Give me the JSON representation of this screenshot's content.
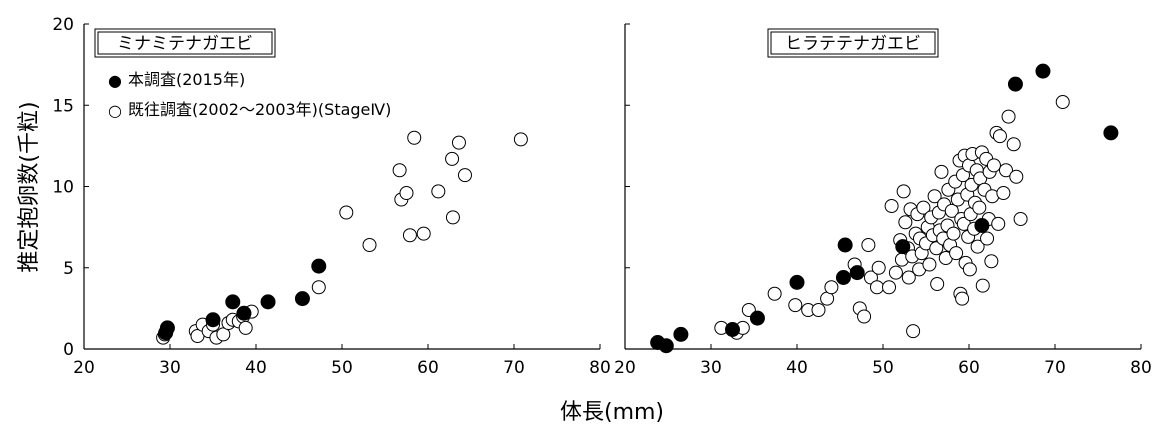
{
  "chart_data": [
    {
      "type": "scatter",
      "title": "ミナミテナガエビ",
      "xlim": [
        20,
        80
      ],
      "ylim": [
        0,
        20
      ],
      "xticks": [
        "20",
        "30",
        "40",
        "50",
        "60",
        "70",
        "80"
      ],
      "yticks": [
        "0",
        "5",
        "10",
        "15",
        "20"
      ],
      "series": [
        {
          "name": "本調査(2015年)",
          "marker": "filled-circle",
          "color": "#000000",
          "points": [
            [
              29.5,
              1.0
            ],
            [
              29.7,
              1.3
            ],
            [
              35.0,
              1.8
            ],
            [
              37.3,
              2.9
            ],
            [
              38.6,
              2.2
            ],
            [
              41.4,
              2.9
            ],
            [
              45.4,
              3.1
            ],
            [
              47.3,
              5.1
            ]
          ]
        },
        {
          "name": "既往調査(2002～2003年)(StageⅣ)",
          "marker": "open-circle",
          "color": "#ffffff",
          "points": [
            [
              29.2,
              0.7
            ],
            [
              29.4,
              0.9
            ],
            [
              33.0,
              1.1
            ],
            [
              33.2,
              0.8
            ],
            [
              33.8,
              1.5
            ],
            [
              34.5,
              1.1
            ],
            [
              35.0,
              1.5
            ],
            [
              35.4,
              0.7
            ],
            [
              36.2,
              0.9
            ],
            [
              36.8,
              1.6
            ],
            [
              37.3,
              1.8
            ],
            [
              38.0,
              1.7
            ],
            [
              38.5,
              2.0
            ],
            [
              38.8,
              1.3
            ],
            [
              39.5,
              2.3
            ],
            [
              47.3,
              3.8
            ],
            [
              50.5,
              8.4
            ],
            [
              53.2,
              6.4
            ],
            [
              56.7,
              11.0
            ],
            [
              56.9,
              9.2
            ],
            [
              57.5,
              9.6
            ],
            [
              57.9,
              7.0
            ],
            [
              58.4,
              13.0
            ],
            [
              59.5,
              7.1
            ],
            [
              61.2,
              9.7
            ],
            [
              62.8,
              11.7
            ],
            [
              62.9,
              8.1
            ],
            [
              63.6,
              12.7
            ],
            [
              64.3,
              10.7
            ],
            [
              70.8,
              12.9
            ]
          ]
        }
      ]
    },
    {
      "type": "scatter",
      "title": "ヒラテテナガエビ",
      "xlim": [
        20,
        80
      ],
      "ylim": [
        0,
        20
      ],
      "xticks": [
        "20",
        "30",
        "40",
        "50",
        "60",
        "70",
        "80"
      ],
      "series": [
        {
          "name": "本調査(2015年)",
          "marker": "filled-circle",
          "color": "#000000",
          "points": [
            [
              23.8,
              0.4
            ],
            [
              24.8,
              0.2
            ],
            [
              26.5,
              0.9
            ],
            [
              32.5,
              1.2
            ],
            [
              35.4,
              1.9
            ],
            [
              40.0,
              4.1
            ],
            [
              45.4,
              4.4
            ],
            [
              45.6,
              6.4
            ],
            [
              47.0,
              4.7
            ],
            [
              52.3,
              6.3
            ],
            [
              61.5,
              7.6
            ],
            [
              65.4,
              16.3
            ],
            [
              68.6,
              17.1
            ],
            [
              76.5,
              13.3
            ]
          ]
        },
        {
          "name": "既往調査(2002～2003年)(StageⅣ)",
          "marker": "open-circle",
          "color": "#ffffff",
          "points": [
            [
              31.2,
              1.3
            ],
            [
              33.0,
              1.0
            ],
            [
              33.7,
              1.3
            ],
            [
              34.4,
              2.4
            ],
            [
              37.4,
              3.4
            ],
            [
              39.8,
              2.7
            ],
            [
              41.3,
              2.4
            ],
            [
              42.5,
              2.4
            ],
            [
              43.5,
              3.1
            ],
            [
              44.0,
              3.8
            ],
            [
              46.7,
              5.2
            ],
            [
              47.3,
              2.5
            ],
            [
              47.8,
              2.0
            ],
            [
              48.3,
              6.4
            ],
            [
              48.6,
              4.4
            ],
            [
              49.3,
              3.8
            ],
            [
              49.5,
              5.0
            ],
            [
              50.7,
              3.8
            ],
            [
              51.0,
              8.8
            ],
            [
              51.5,
              4.7
            ],
            [
              52.0,
              6.7
            ],
            [
              52.2,
              5.5
            ],
            [
              52.4,
              9.7
            ],
            [
              52.6,
              7.8
            ],
            [
              52.9,
              6.2
            ],
            [
              53.0,
              4.4
            ],
            [
              53.2,
              8.6
            ],
            [
              53.4,
              5.7
            ],
            [
              53.5,
              1.1
            ],
            [
              53.8,
              7.1
            ],
            [
              54.0,
              8.3
            ],
            [
              54.2,
              4.9
            ],
            [
              54.3,
              6.8
            ],
            [
              54.5,
              5.9
            ],
            [
              54.7,
              8.7
            ],
            [
              55.0,
              6.5
            ],
            [
              55.2,
              7.5
            ],
            [
              55.4,
              5.2
            ],
            [
              55.6,
              8.1
            ],
            [
              55.8,
              7.0
            ],
            [
              56.0,
              9.4
            ],
            [
              56.2,
              6.2
            ],
            [
              56.3,
              4.0
            ],
            [
              56.5,
              8.4
            ],
            [
              56.6,
              7.3
            ],
            [
              56.8,
              10.9
            ],
            [
              57.0,
              6.8
            ],
            [
              57.1,
              8.9
            ],
            [
              57.3,
              5.6
            ],
            [
              57.5,
              7.6
            ],
            [
              57.6,
              9.8
            ],
            [
              57.8,
              6.4
            ],
            [
              58.0,
              8.5
            ],
            [
              58.2,
              7.1
            ],
            [
              58.4,
              10.3
            ],
            [
              58.5,
              5.9
            ],
            [
              58.7,
              9.2
            ],
            [
              58.9,
              11.6
            ],
            [
              59.0,
              3.4
            ],
            [
              59.1,
              8.0
            ],
            [
              59.2,
              3.1
            ],
            [
              59.3,
              10.7
            ],
            [
              59.4,
              7.7
            ],
            [
              59.5,
              11.9
            ],
            [
              59.6,
              5.3
            ],
            [
              59.8,
              9.5
            ],
            [
              59.9,
              6.9
            ],
            [
              60.0,
              11.3
            ],
            [
              60.1,
              4.9
            ],
            [
              60.2,
              8.3
            ],
            [
              60.3,
              10.1
            ],
            [
              60.4,
              12.0
            ],
            [
              60.6,
              7.4
            ],
            [
              60.7,
              9.0
            ],
            [
              60.9,
              11.0
            ],
            [
              61.0,
              6.3
            ],
            [
              61.2,
              8.7
            ],
            [
              61.3,
              10.5
            ],
            [
              61.5,
              12.1
            ],
            [
              61.6,
              3.9
            ],
            [
              61.8,
              9.8
            ],
            [
              62.0,
              11.7
            ],
            [
              62.1,
              6.8
            ],
            [
              62.3,
              8.0
            ],
            [
              62.4,
              10.9
            ],
            [
              62.6,
              5.4
            ],
            [
              62.7,
              9.4
            ],
            [
              62.9,
              11.3
            ],
            [
              63.2,
              13.3
            ],
            [
              63.4,
              7.7
            ],
            [
              63.6,
              13.1
            ],
            [
              64.0,
              9.6
            ],
            [
              64.3,
              11.0
            ],
            [
              64.6,
              14.3
            ],
            [
              65.2,
              12.6
            ],
            [
              65.5,
              10.6
            ],
            [
              66.0,
              8.0
            ],
            [
              70.9,
              15.2
            ]
          ]
        }
      ]
    }
  ],
  "axes": {
    "ylabel": "推定抱卵数(千粒)",
    "xlabel": "体長(mm)"
  },
  "legend": {
    "items": [
      {
        "symbol": "●",
        "label": "本調査(2015年)"
      },
      {
        "symbol": "○",
        "label": "既往調査(2002～2003年)(StageⅣ)"
      }
    ]
  }
}
